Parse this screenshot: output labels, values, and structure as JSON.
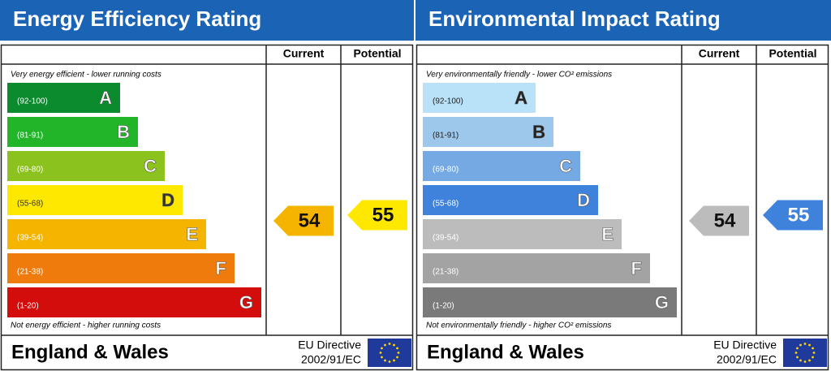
{
  "chart_data": [
    {
      "type": "rating",
      "title": "Energy Efficiency Rating",
      "column_current": "Current",
      "column_potential": "Potential",
      "top_note": "Very energy efficient - lower running costs",
      "bottom_note": "Not energy efficient - higher running costs",
      "bands": [
        {
          "range": "(92-100)",
          "letter": "A",
          "color": "#0b8a2e",
          "text_color": "#ffffff"
        },
        {
          "range": "(81-91)",
          "letter": "B",
          "color": "#22b52a",
          "text_color": "#ffffff"
        },
        {
          "range": "(69-80)",
          "letter": "C",
          "color": "#8cc21d",
          "text_color": "#ffffff"
        },
        {
          "range": "(55-68)",
          "letter": "D",
          "color": "#ffe800",
          "text_color": "#333333"
        },
        {
          "range": "(39-54)",
          "letter": "E",
          "color": "#f4b400",
          "text_color": "#ffffff"
        },
        {
          "range": "(21-38)",
          "letter": "F",
          "color": "#ef7b0d",
          "text_color": "#ffffff"
        },
        {
          "range": "(1-20)",
          "letter": "G",
          "color": "#d30c0c",
          "text_color": "#ffffff"
        }
      ],
      "current": {
        "value": 54,
        "color": "#f4b400",
        "text_color": "#111111"
      },
      "potential": {
        "value": 55,
        "color": "#ffe800",
        "text_color": "#111111"
      },
      "region": "England & Wales",
      "directive": [
        "EU Directive",
        "2002/91/EC"
      ]
    },
    {
      "type": "rating",
      "title": "Environmental Impact Rating",
      "column_current": "Current",
      "column_potential": "Potential",
      "top_note": "Very environmentally friendly - lower CO² emissions",
      "bottom_note": "Not environmentally friendly - higher CO² emissions",
      "bands": [
        {
          "range": "(92-100)",
          "letter": "A",
          "color": "#b9e1f7",
          "text_color": "#222222"
        },
        {
          "range": "(81-91)",
          "letter": "B",
          "color": "#9ec7ec",
          "text_color": "#222222"
        },
        {
          "range": "(69-80)",
          "letter": "C",
          "color": "#74a9e4",
          "text_color": "#ffffff"
        },
        {
          "range": "(55-68)",
          "letter": "D",
          "color": "#3f82dc",
          "text_color": "#ffffff"
        },
        {
          "range": "(39-54)",
          "letter": "E",
          "color": "#bcbcbc",
          "text_color": "#ffffff"
        },
        {
          "range": "(21-38)",
          "letter": "F",
          "color": "#a3a3a3",
          "text_color": "#ffffff"
        },
        {
          "range": "(1-20)",
          "letter": "G",
          "color": "#7a7a7a",
          "text_color": "#ffffff"
        }
      ],
      "current": {
        "value": 54,
        "color": "#bcbcbc",
        "text_color": "#111111"
      },
      "potential": {
        "value": 55,
        "color": "#3f82dc",
        "text_color": "#ffffff"
      },
      "region": "England & Wales",
      "directive": [
        "EU Directive",
        "2002/91/EC"
      ]
    }
  ]
}
